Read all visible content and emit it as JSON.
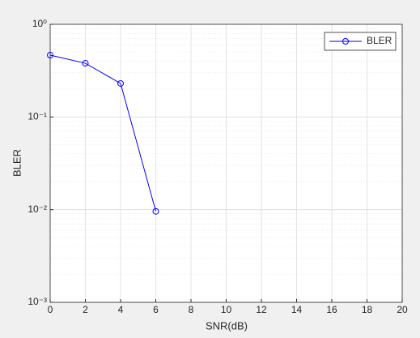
{
  "chart_data": {
    "type": "line",
    "xlabel": "SNR(dB)",
    "ylabel": "BLER",
    "x": [
      0,
      2,
      4,
      6
    ],
    "series": [
      {
        "name": "BLER",
        "color": "#0000ff",
        "marker": "circle",
        "values": [
          0.465,
          0.38,
          0.23,
          0.0096
        ]
      }
    ],
    "xlim": [
      0,
      20
    ],
    "xticks": [
      0,
      2,
      4,
      6,
      8,
      10,
      12,
      14,
      16,
      18,
      20
    ],
    "ylim": [
      0.001,
      1
    ],
    "log_y": true,
    "yticks": [
      {
        "value": 0.001,
        "label": "10⁻³"
      },
      {
        "value": 0.01,
        "label": "10⁻²"
      },
      {
        "value": 0.1,
        "label": "10⁻¹"
      },
      {
        "value": 1,
        "label": "10⁰"
      }
    ],
    "grid": true,
    "minor_grid": true,
    "legend": "top-right"
  }
}
